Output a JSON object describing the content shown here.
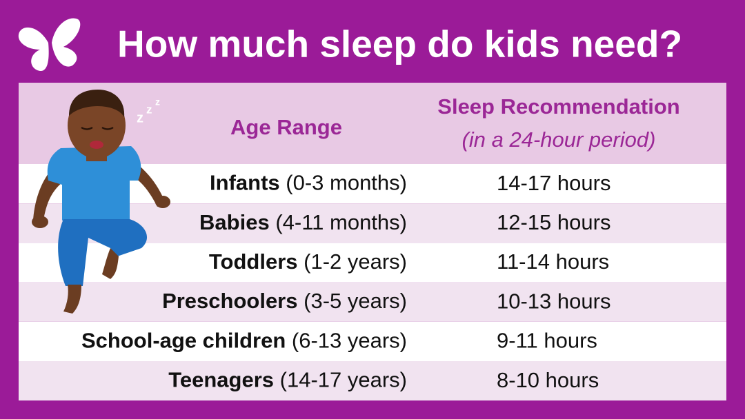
{
  "header": {
    "title": "How much sleep do kids need?"
  },
  "table": {
    "columns": [
      "Age Range",
      "Sleep Recommendation"
    ],
    "column_note": "(in a 24-hour period)",
    "rows": [
      {
        "group": "Infants",
        "age": "(0-3 months)",
        "hours": "14-17 hours"
      },
      {
        "group": "Babies",
        "age": "(4-11 months)",
        "hours": "12-15 hours"
      },
      {
        "group": "Toddlers",
        "age": "(1-2 years)",
        "hours": "11-14 hours"
      },
      {
        "group": "Preschoolers",
        "age": "(3-5 years)",
        "hours": "10-13 hours"
      },
      {
        "group": "School-age children",
        "age": "(6-13 years)",
        "hours": "9-11 hours"
      },
      {
        "group": "Teenagers",
        "age": "(14-17 years)",
        "hours": "8-10 hours"
      }
    ]
  },
  "illustration": {
    "snore": [
      "z",
      "z",
      "z"
    ]
  }
}
